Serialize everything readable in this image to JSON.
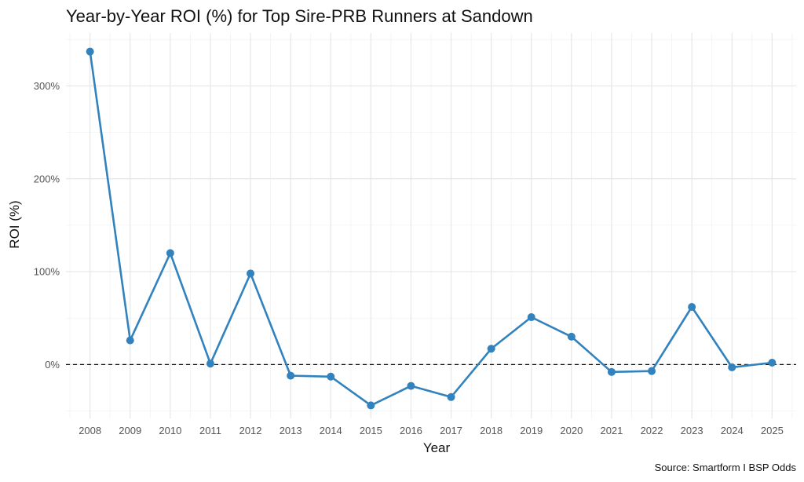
{
  "chart_data": {
    "type": "line",
    "title": "Year-by-Year ROI (%) for Top Sire-PRB Runners at Sandown",
    "xlabel": "Year",
    "ylabel": "ROI (%)",
    "caption": "Source: Smartform I BSP Odds",
    "categories": [
      "2008",
      "2009",
      "2010",
      "2011",
      "2012",
      "2013",
      "2014",
      "2015",
      "2016",
      "2017",
      "2018",
      "2019",
      "2020",
      "2021",
      "2022",
      "2023",
      "2024",
      "2025"
    ],
    "series": [
      {
        "values": [
          337,
          26,
          120,
          1,
          98,
          -12,
          -13,
          -44,
          -23,
          -35,
          17,
          51,
          30,
          -8,
          -7,
          62,
          -3,
          2
        ]
      }
    ],
    "yticks": [
      0,
      100,
      200,
      300
    ],
    "ytick_labels": [
      "0%",
      "100%",
      "200%",
      "300%"
    ],
    "ylim": [
      -58,
      357
    ],
    "reference_line": 0,
    "grid": true,
    "line_color": "#3182bd"
  }
}
